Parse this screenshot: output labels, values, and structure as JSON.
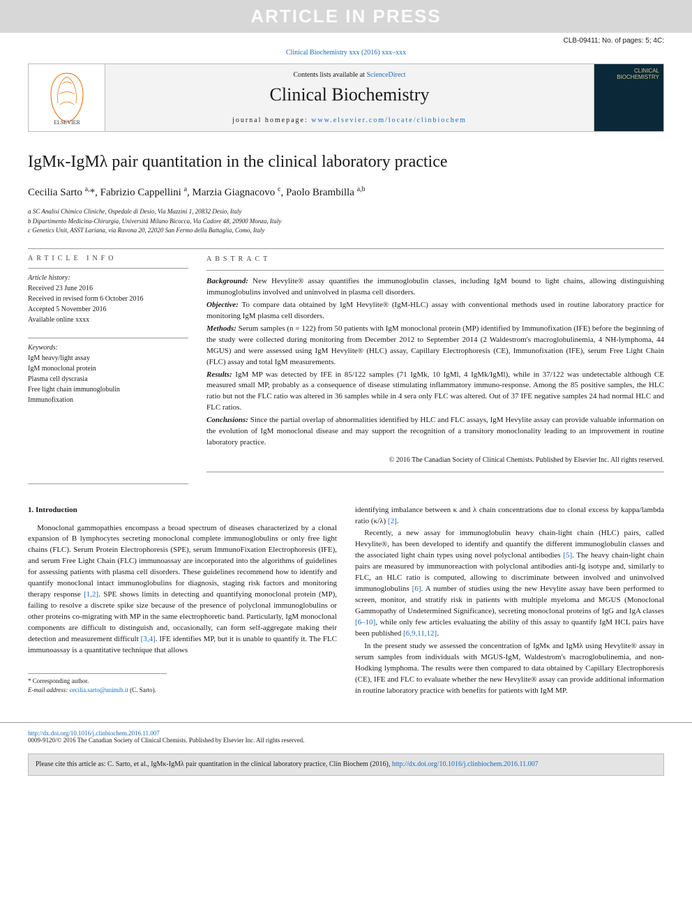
{
  "banner": "ARTICLE IN PRESS",
  "meta_id": "CLB-09411; No. of pages: 5; 4C:",
  "journal_line": "Clinical Biochemistry xxx (2016) xxx–xxx",
  "header": {
    "avail_prefix": "Contents lists available at ",
    "avail_link": "ScienceDirect",
    "journal": "Clinical Biochemistry",
    "home_prefix": "journal homepage: ",
    "home_link": "www.elsevier.com/locate/clinbiochem",
    "cover_line1": "CLINICAL",
    "cover_line2": "BIOCHEMISTRY"
  },
  "title": "IgMκ-IgMλ pair quantitation in the clinical laboratory practice",
  "authors_html": "Cecilia Sarto <sup>a,</sup>*, Fabrizio Cappellini <sup>a</sup>, Marzia Giagnacovo <sup>c</sup>, Paolo Brambilla <sup>a,b</sup>",
  "affiliations": [
    "a  SC Analisi Chimico Cliniche, Ospedale di Desio, Via Mazzini 1, 20832 Desio, Italy",
    "b  Dipartimento Medicina-Chirurgia, Università Milano Bicocca, Via Cadore 48, 20900 Monza, Italy",
    "c  Genetics Unit, ASST Lariana, via Ravona 20, 22020 San Fermo della Battaglia, Como, Italy"
  ],
  "article_info_head": "ARTICLE INFO",
  "abstract_head": "ABSTRACT",
  "history_label": "Article history:",
  "history": [
    "Received 23 June 2016",
    "Received in revised form 6 October 2016",
    "Accepted 5 November 2016",
    "Available online xxxx"
  ],
  "keywords_label": "Keywords:",
  "keywords": [
    "IgM heavy/light assay",
    "IgM monoclonal protein",
    "Plasma cell dyscrasia",
    "Free light chain immunoglobulin",
    "Immunofixation"
  ],
  "abstract": {
    "background": "New Hevylite® assay quantifies the immunoglobulin classes, including IgM bound to light chains, allowing distinguishing immunoglobulins involved and uninvolved in plasma cell disorders.",
    "objective": "To compare data obtained by IgM Hevylite® (IgM-HLC) assay with conventional methods used in routine laboratory practice for monitoring IgM plasma cell disorders.",
    "methods": "Serum samples (n = 122) from 50 patients with IgM monoclonal protein (MP) identified by Immunofixation (IFE) before the beginning of the study were collected during monitoring from December 2012 to September 2014 (2 Waldestrom's macroglobulinemia, 4 NH-lymphoma, 44 MGUS) and were assessed using IgM Hevylite® (HLC) assay, Capillary Electrophoresis (CE), Immunofixation (IFE), serum Free Light Chain (FLC) assay and total IgM measurements.",
    "results": "IgM MP was detected by IFE in 85/122 samples (71 IgMk, 10 IgMl, 4 IgMk/IgMl), while in 37/122 was undetectable although CE measured small MP, probably as a consequence of disease stimulating inflammatory immuno-response. Among the 85 positive samples, the HLC ratio but not the FLC ratio was altered in 36 samples while in 4 sera only FLC was altered. Out of 37 IFE negative samples 24 had normal HLC and FLC ratios.",
    "conclusions": "Since the partial overlap of abnormalities identified by HLC and FLC assays, IgM Hevylite assay can provide valuable information on the evolution of IgM monoclonal disease and may support the recognition of a transitory monoclonality leading to an improvement in routine laboratory practice."
  },
  "copyright": "© 2016 The Canadian Society of Clinical Chemists. Published by Elsevier Inc. All rights reserved.",
  "intro_head": "1. Introduction",
  "intro_left_p1": "Monoclonal gammopathies encompass a broad spectrum of diseases characterized by a clonal expansion of B lymphocytes secreting monoclonal complete immunoglobulins or only free light chains (FLC). Serum Protein Electrophoresis (SPE), serum ImmunoFixation Electrophoresis (IFE), and serum Free Light Chain (FLC) immunoassay are incorporated into the algorithms of guidelines for assessing patients with plasma cell disorders. These guidelines recommend how to identify and quantify monoclonal intact immunoglobulins for diagnosis, staging risk factors and monitoring therapy response ",
  "intro_left_ref1": "[1,2]",
  "intro_left_p1b": ". SPE shows limits in detecting and quantifying monoclonal protein (MP), failing to resolve a discrete spike size because of the presence of polyclonal immunoglobulins or other proteins co-migrating with MP in the same electrophoretic band. Particularly, IgM monoclonal components are difficult to distinguish and, occasionally, can form self-aggregate making their detection and measurement difficult ",
  "intro_left_ref2": "[3,4]",
  "intro_left_p1c": ". IFE identifies MP, but it is unable to quantify it. The FLC immunoassay is a quantitative technique that allows",
  "intro_right_p0": "identifying imbalance between κ and λ chain concentrations due to clonal excess by kappa/lambda ratio (κ/λ) ",
  "intro_right_ref0": "[2]",
  "intro_right_p0b": ".",
  "intro_right_p1": "Recently, a new assay for immunoglobulin heavy chain-light chain (HLC) pairs, called Hevylite®, has been developed to identify and quantify the different immunoglobulin classes and the associated light chain types using novel polyclonal antibodies ",
  "intro_right_ref1": "[5]",
  "intro_right_p1b": ". The heavy chain-light chain pairs are measured by immunoreaction with polyclonal antibodies anti-Ig isotype and, similarly to FLC, an HLC ratio is computed, allowing to discriminate between involved and uninvolved immunoglobulins ",
  "intro_right_ref2": "[6]",
  "intro_right_p1c": ". A number of studies using the new Hevylite assay have been performed to screen, monitor, and stratify risk in patients with multiple myeloma and MGUS (Monoclonal Gammopathy of Undetermined Significance), secreting monoclonal proteins of IgG and IgA classes ",
  "intro_right_ref3": "[6–10]",
  "intro_right_p1d": ", while only few articles evaluating the ability of this assay to quantify IgM HCL pairs have been published ",
  "intro_right_ref4": "[6,9,11,12]",
  "intro_right_p1e": ".",
  "intro_right_p2": "In the present study we assessed the concentration of IgMκ and IgMλ using Hevylite® assay in serum samples from individuals with MGUS-IgM, Waldestrom's macroglobulinemia, and non-Hodking lymphoma. The results were then compared to data obtained by Capillary Electrophoresis (CE), IFE and FLC to evaluate whether the new Hevylite® assay can provide additional information in routine laboratory practice with benefits for patients with IgM MP.",
  "corr_star": "* Corresponding author.",
  "corr_email_label": "E-mail address: ",
  "corr_email": "cecilia.sarto@unimib.it",
  "corr_name": " (C. Sarto).",
  "doi": "http://dx.doi.org/10.1016/j.clinbiochem.2016.11.007",
  "issn_line": "0009-9120/© 2016 The Canadian Society of Clinical Chemists. Published by Elsevier Inc. All rights reserved.",
  "cite_prefix": "Please cite this article as: C. Sarto, et al., IgMκ-IgMλ pair quantitation in the clinical laboratory practice, Clin Biochem (2016), ",
  "cite_link": "http://dx.doi.org/10.1016/j.clinbiochem.2016.11.007",
  "colors": {
    "link": "#1a6bb8",
    "banner_bg": "#d7d7d7",
    "banner_fg": "#fcfcfc",
    "box_bg": "#f3f3f3",
    "box_border": "#bcbcbc",
    "cover_bg": "#0a2838",
    "cover_text": "#d4c48a",
    "cite_bg": "#e4e4e4"
  }
}
